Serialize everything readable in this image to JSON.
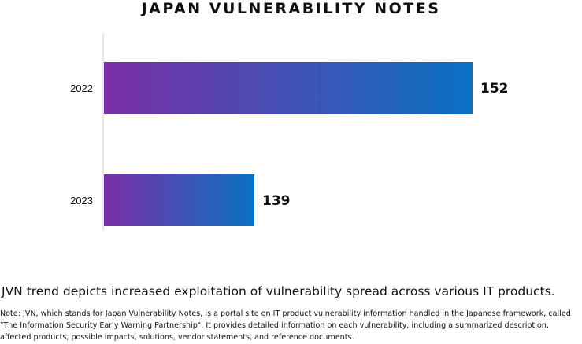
{
  "chart_data": {
    "type": "bar",
    "orientation": "horizontal",
    "title": "JAPAN VULNERABILITY NOTES",
    "categories": [
      "2022",
      "2023"
    ],
    "values": [
      152,
      139
    ],
    "value_labels": [
      "152",
      "139"
    ],
    "xlabel": "",
    "ylabel": "",
    "grid": false,
    "legend": "none",
    "colors": {
      "gradient_start": "#7b2fa6",
      "gradient_end": "#0a72c3",
      "axis": "#cccccc"
    }
  },
  "caption": "JVN trend depicts increased exploitation of vulnerability spread across various IT products.",
  "note": "Note: JVN, which stands for Japan Vulnerability Notes, is a portal site on IT product vulnerability information handled in the Japanese framework, called \"The Information Security Early Warning Partnership\". It provides detailed information on each vulnerability, including a summarized description, affected products, possible impacts, solutions, vendor statements, and reference documents."
}
